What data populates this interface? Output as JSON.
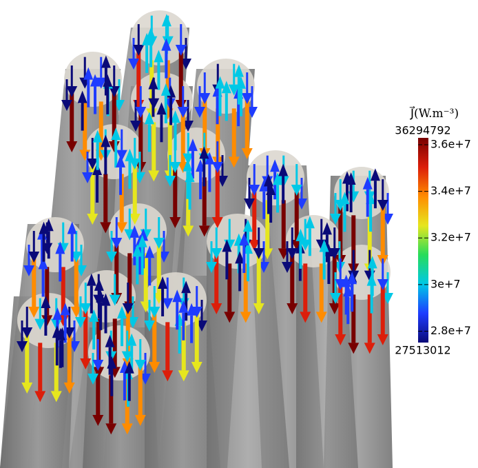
{
  "chart_data": {
    "type": "colorbar",
    "title": "J⃗(W.m⁻³)",
    "ylim": [
      27513012,
      36294792
    ],
    "yticks": [
      {
        "value": 28000000,
        "label": "2.8e+7"
      },
      {
        "value": 30000000,
        "label": "3e+7"
      },
      {
        "value": 32000000,
        "label": "3.2e+7"
      },
      {
        "value": 34000000,
        "label": "3.4e+7"
      },
      {
        "value": 36000000,
        "label": "3.6e+7"
      }
    ],
    "colormap": [
      "#0a0a78",
      "#1e3cff",
      "#00c8e6",
      "#28dc5a",
      "#e6e61e",
      "#ff8c00",
      "#dc1e0a",
      "#780000"
    ]
  }
}
